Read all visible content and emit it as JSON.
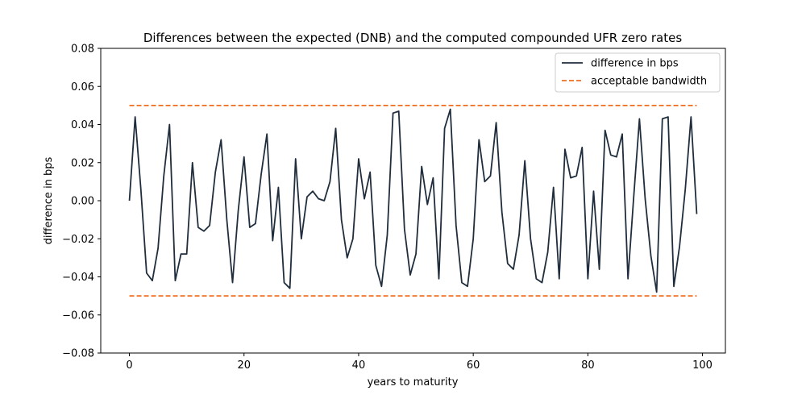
{
  "chart_data": {
    "type": "line",
    "title": "Differences between the expected (DNB) and the computed compounded UFR zero rates",
    "xlabel": "years to maturity",
    "ylabel": "difference in bps",
    "xlim": [
      -5,
      104
    ],
    "ylim": [
      -0.08,
      0.08
    ],
    "xticks": [
      0,
      20,
      40,
      60,
      80,
      100
    ],
    "xtick_labels": [
      "0",
      "20",
      "40",
      "60",
      "80",
      "100"
    ],
    "yticks": [
      -0.08,
      -0.06,
      -0.04,
      -0.02,
      0.0,
      0.02,
      0.04,
      0.06,
      0.08
    ],
    "ytick_labels": [
      "−0.08",
      "−0.06",
      "−0.04",
      "−0.02",
      "0.00",
      "0.02",
      "0.04",
      "0.06",
      "0.08"
    ],
    "grid": false,
    "legend_position": "top-right",
    "series": [
      {
        "name": "difference in bps",
        "color": "#1f2d3d",
        "style": "solid",
        "x": [
          0,
          1,
          2,
          3,
          4,
          5,
          6,
          7,
          8,
          9,
          10,
          11,
          12,
          13,
          14,
          15,
          16,
          17,
          18,
          19,
          20,
          21,
          22,
          23,
          24,
          25,
          26,
          27,
          28,
          29,
          30,
          31,
          32,
          33,
          34,
          35,
          36,
          37,
          38,
          39,
          40,
          41,
          42,
          43,
          44,
          45,
          46,
          47,
          48,
          49,
          50,
          51,
          52,
          53,
          54,
          55,
          56,
          57,
          58,
          59,
          60,
          61,
          62,
          63,
          64,
          65,
          66,
          67,
          68,
          69,
          70,
          71,
          72,
          73,
          74,
          75,
          76,
          77,
          78,
          79,
          80,
          81,
          82,
          83,
          84,
          85,
          86,
          87,
          88,
          89,
          90,
          91,
          92,
          93,
          94,
          95,
          96,
          97,
          98,
          99
        ],
        "y": [
          0.0,
          0.044,
          0.006,
          -0.038,
          -0.042,
          -0.025,
          0.013,
          0.04,
          -0.042,
          -0.028,
          -0.028,
          0.02,
          -0.014,
          -0.016,
          -0.013,
          0.015,
          0.032,
          -0.01,
          -0.043,
          -0.005,
          0.023,
          -0.014,
          -0.012,
          0.014,
          0.035,
          -0.021,
          0.007,
          -0.043,
          -0.046,
          0.022,
          -0.02,
          0.002,
          0.005,
          0.001,
          0.0,
          0.01,
          0.038,
          -0.01,
          -0.03,
          -0.02,
          0.022,
          0.001,
          0.015,
          -0.034,
          -0.045,
          -0.018,
          0.046,
          0.047,
          -0.015,
          -0.039,
          -0.028,
          0.018,
          -0.002,
          0.012,
          -0.041,
          0.038,
          0.048,
          -0.013,
          -0.043,
          -0.045,
          -0.02,
          0.032,
          0.01,
          0.013,
          0.041,
          -0.006,
          -0.033,
          -0.036,
          -0.018,
          0.021,
          -0.02,
          -0.041,
          -0.043,
          -0.027,
          0.007,
          -0.041,
          0.027,
          0.012,
          0.013,
          0.028,
          -0.041,
          0.005,
          -0.036,
          0.037,
          0.024,
          0.023,
          0.035,
          -0.041,
          0.002,
          0.043,
          0.001,
          -0.029,
          -0.048,
          0.043,
          0.044,
          -0.045,
          -0.024,
          0.006,
          0.044,
          -0.007
        ]
      },
      {
        "name": "acceptable bandwidth",
        "color": "#f06d1e",
        "style": "dashed",
        "x": [
          0,
          99
        ],
        "y": [
          0.05,
          0.05
        ]
      },
      {
        "name": "",
        "color": "#f06d1e",
        "style": "dashed",
        "x": [
          0,
          99
        ],
        "y": [
          -0.05,
          -0.05
        ]
      }
    ]
  }
}
